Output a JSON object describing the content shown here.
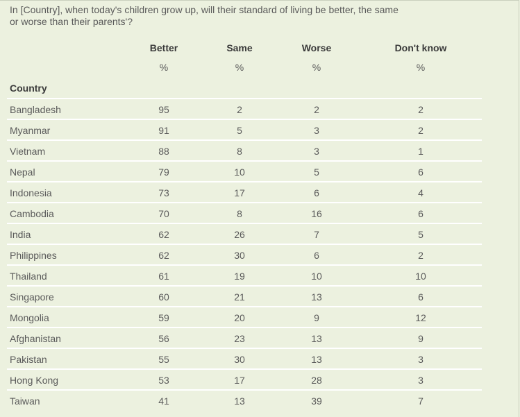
{
  "question": "In [Country], when today's children grow up, will their standard of living be better, the same or worse than their parents'?",
  "columns": [
    {
      "label": "Better",
      "unit": "%"
    },
    {
      "label": "Same",
      "unit": "%"
    },
    {
      "label": "Worse",
      "unit": "%"
    },
    {
      "label": "Don't know",
      "unit": "%"
    }
  ],
  "row_header": "Country",
  "rows": [
    {
      "country": "Bangladesh",
      "better": "95",
      "same": "2",
      "worse": "2",
      "dont_know": "2"
    },
    {
      "country": "Myanmar",
      "better": "91",
      "same": "5",
      "worse": "3",
      "dont_know": "2"
    },
    {
      "country": "Vietnam",
      "better": "88",
      "same": "8",
      "worse": "3",
      "dont_know": "1"
    },
    {
      "country": "Nepal",
      "better": "79",
      "same": "10",
      "worse": "5",
      "dont_know": "6"
    },
    {
      "country": "Indonesia",
      "better": "73",
      "same": "17",
      "worse": "6",
      "dont_know": "4"
    },
    {
      "country": "Cambodia",
      "better": "70",
      "same": "8",
      "worse": "16",
      "dont_know": "6"
    },
    {
      "country": "India",
      "better": "62",
      "same": "26",
      "worse": "7",
      "dont_know": "5"
    },
    {
      "country": "Philippines",
      "better": "62",
      "same": "30",
      "worse": "6",
      "dont_know": "2"
    },
    {
      "country": "Thailand",
      "better": "61",
      "same": "19",
      "worse": "10",
      "dont_know": "10"
    },
    {
      "country": "Singapore",
      "better": "60",
      "same": "21",
      "worse": "13",
      "dont_know": "6"
    },
    {
      "country": "Mongolia",
      "better": "59",
      "same": "20",
      "worse": "9",
      "dont_know": "12"
    },
    {
      "country": "Afghanistan",
      "better": "56",
      "same": "23",
      "worse": "13",
      "dont_know": "9"
    },
    {
      "country": "Pakistan",
      "better": "55",
      "same": "30",
      "worse": "13",
      "dont_know": "3"
    },
    {
      "country": "Hong Kong",
      "better": "53",
      "same": "17",
      "worse": "28",
      "dont_know": "3"
    },
    {
      "country": "Taiwan",
      "better": "41",
      "same": "13",
      "worse": "39",
      "dont_know": "7"
    }
  ]
}
